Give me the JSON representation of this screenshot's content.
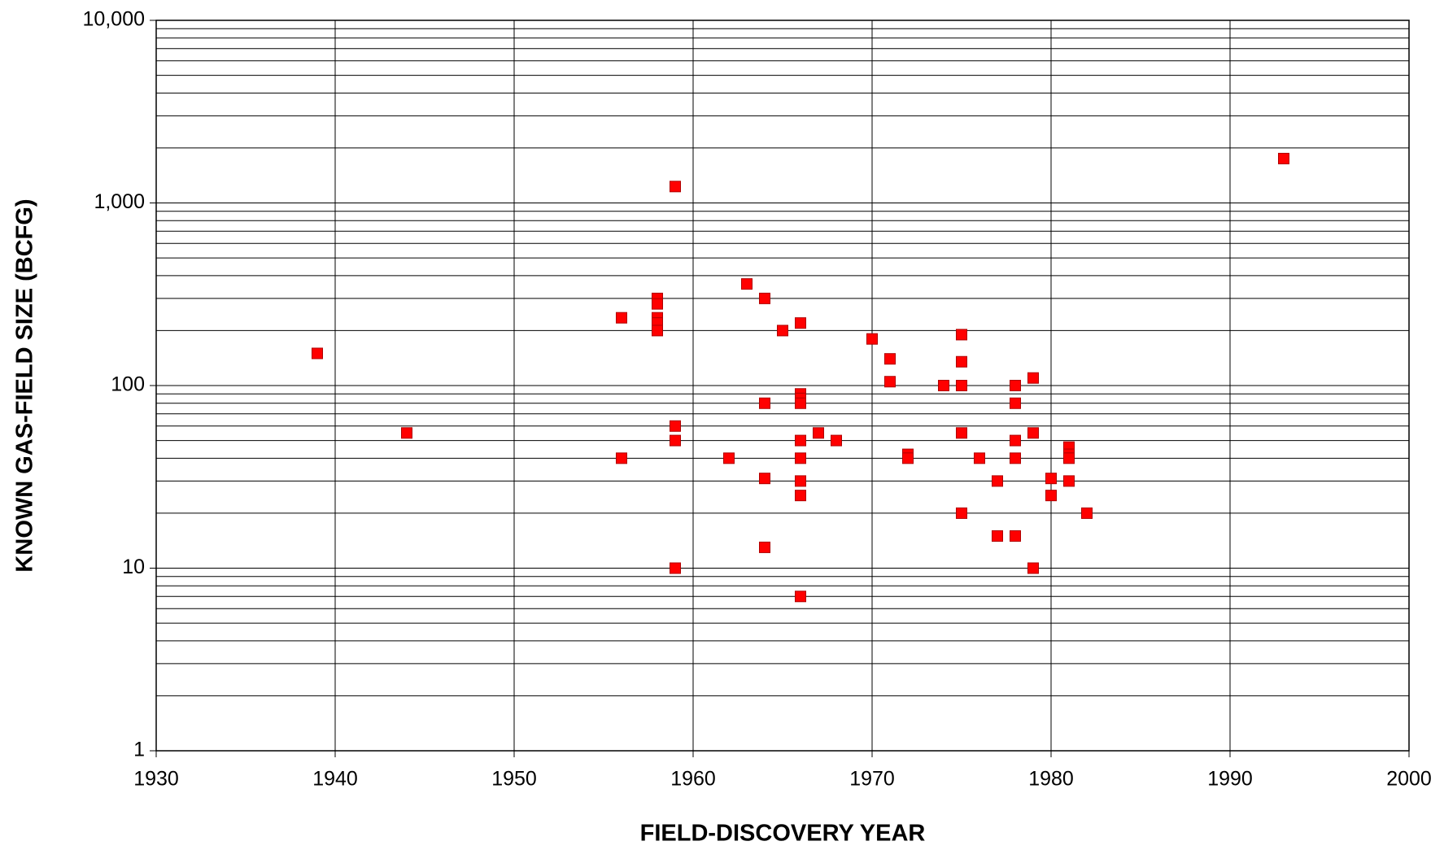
{
  "chart_data": {
    "type": "scatter",
    "xlabel": "FIELD-DISCOVERY YEAR",
    "ylabel": "KNOWN GAS-FIELD SIZE (BCFG)",
    "x": [
      1939,
      1944,
      1956,
      1956,
      1958,
      1958,
      1958,
      1958,
      1958,
      1959,
      1959,
      1959,
      1959,
      1962,
      1963,
      1964,
      1964,
      1964,
      1964,
      1965,
      1966,
      1966,
      1966,
      1966,
      1966,
      1966,
      1966,
      1966,
      1966,
      1967,
      1968,
      1970,
      1971,
      1971,
      1972,
      1972,
      1974,
      1975,
      1975,
      1975,
      1975,
      1975,
      1976,
      1977,
      1977,
      1978,
      1978,
      1978,
      1978,
      1978,
      1979,
      1979,
      1979,
      1980,
      1980,
      1981,
      1981,
      1981,
      1981,
      1982,
      1993
    ],
    "values": [
      150,
      55,
      235,
      40,
      300,
      280,
      235,
      220,
      200,
      1230,
      60,
      50,
      10,
      40,
      360,
      300,
      80,
      31,
      13,
      200,
      220,
      90,
      85,
      80,
      50,
      40,
      30,
      25,
      7,
      55,
      50,
      180,
      140,
      105,
      42,
      40,
      100,
      190,
      135,
      100,
      55,
      20,
      40,
      30,
      15,
      100,
      80,
      50,
      40,
      15,
      110,
      55,
      10,
      31,
      25,
      46,
      42,
      40,
      30,
      20,
      1750
    ],
    "color": "#ff0000",
    "xlim": [
      1930,
      2000
    ],
    "xticks": [
      1930,
      1940,
      1950,
      1960,
      1970,
      1980,
      1990,
      2000
    ],
    "ylim": [
      1,
      10000
    ],
    "ylog": true,
    "yticks": [
      1,
      10,
      100,
      {
        "value": 1000,
        "label": "1,000"
      },
      {
        "value": 10000,
        "label": "10,000"
      }
    ],
    "y_minor_ticks": [
      2,
      3,
      4,
      5,
      6,
      7,
      8,
      9,
      20,
      30,
      40,
      50,
      60,
      70,
      80,
      90,
      200,
      300,
      400,
      500,
      600,
      700,
      800,
      900,
      2000,
      3000,
      4000,
      5000,
      6000,
      7000,
      8000,
      9000
    ],
    "grid": true
  }
}
